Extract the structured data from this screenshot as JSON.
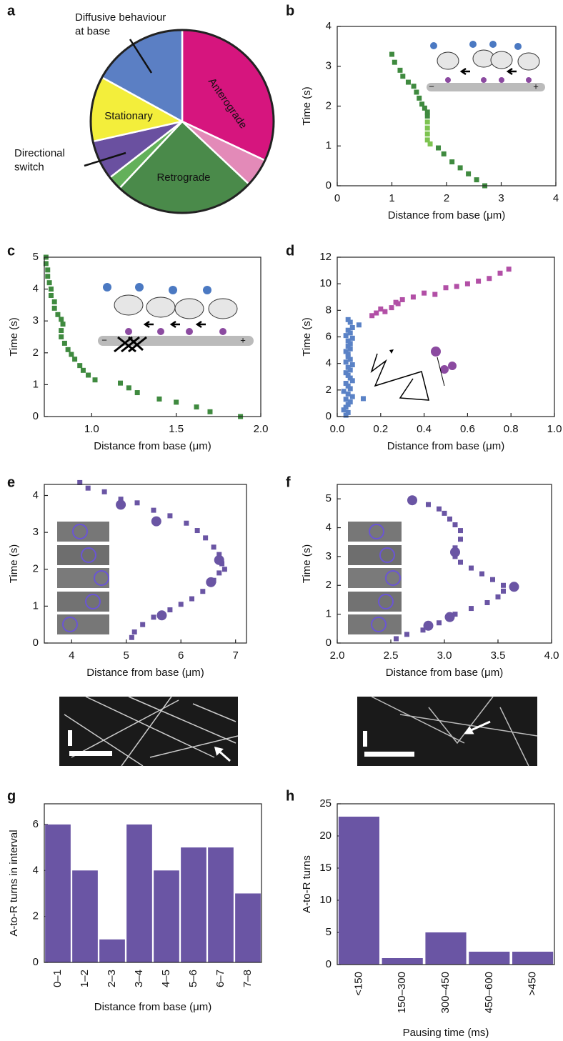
{
  "chart_data": [
    {
      "panel": "a",
      "type": "pie",
      "categories": [
        "Anterograde",
        null,
        "Retrograde",
        null,
        "Directional\nswitch",
        "Stationary",
        "Diffusive  behaviour\nat base"
      ],
      "values": [
        32,
        5,
        25,
        2.5,
        7,
        11.5,
        17
      ],
      "colors": [
        "#d6157e",
        "#e38ab8",
        "#4a8a4a",
        "#63b05a",
        "#6a50a0",
        "#f3ee3b",
        "#5b7fc4"
      ]
    },
    {
      "panel": "b",
      "type": "scatter",
      "x_label": "Distance from base (μm)",
      "y_label": "Time (s)",
      "xlim": [
        0,
        4
      ],
      "xticks": [
        0,
        1,
        2,
        3,
        4
      ],
      "ylim": [
        0,
        4
      ],
      "yticks": [
        0,
        1,
        2,
        3,
        4
      ],
      "inset_labels": [
        "−",
        "+"
      ],
      "series": [
        {
          "color": "#3f8a3f",
          "marker": "square",
          "x": [
            2.7,
            2.55,
            2.4,
            2.25,
            2.1,
            1.95,
            1.85,
            1.65,
            1.65,
            1.6,
            1.55,
            1.5,
            1.45,
            1.4,
            1.3,
            1.2,
            1.15,
            1.05,
            1.0
          ],
          "values": [
            0,
            0.15,
            0.3,
            0.45,
            0.6,
            0.8,
            0.95,
            1.75,
            1.85,
            1.95,
            2.05,
            2.2,
            2.35,
            2.5,
            2.6,
            2.75,
            2.9,
            3.1,
            3.3
          ]
        },
        {
          "color": "#7dc350",
          "marker": "square",
          "x": [
            1.7,
            1.65,
            1.65,
            1.65,
            1.65
          ],
          "values": [
            1.05,
            1.15,
            1.3,
            1.45,
            1.6
          ]
        }
      ]
    },
    {
      "panel": "c",
      "type": "scatter",
      "x_label": "Distance from base (μm)",
      "y_label": "Time (s)",
      "xlim": [
        0.72,
        2.0
      ],
      "xticks": [
        {
          "value": 1,
          "label": "1.0"
        },
        {
          "value": 1.5,
          "label": "1.5"
        },
        {
          "value": 2,
          "label": "2.0"
        }
      ],
      "ylim": [
        0,
        5
      ],
      "yticks": [
        0,
        1,
        2,
        3,
        4,
        5
      ],
      "inset_labels": [
        "−",
        "+"
      ],
      "series": [
        {
          "color": "#3f8a3f",
          "marker": "square",
          "x": [
            1.88,
            1.7,
            1.62,
            1.5,
            1.4,
            1.27,
            1.22,
            1.17,
            1.02,
            0.98,
            0.95,
            0.93,
            0.9,
            0.88,
            0.86,
            0.84,
            0.82,
            0.82,
            0.83,
            0.82,
            0.8,
            0.78,
            0.78,
            0.76,
            0.76,
            0.75,
            0.74,
            0.74,
            0.73,
            0.73
          ],
          "values": [
            0,
            0.15,
            0.3,
            0.45,
            0.55,
            0.75,
            0.9,
            1.05,
            1.15,
            1.3,
            1.45,
            1.6,
            1.8,
            1.95,
            2.1,
            2.3,
            2.5,
            2.7,
            2.9,
            3.05,
            3.2,
            3.4,
            3.6,
            3.8,
            4.0,
            4.2,
            4.4,
            4.6,
            4.8,
            5.0
          ]
        }
      ]
    },
    {
      "panel": "d",
      "type": "scatter",
      "x_label": "Distance from base (μm)",
      "y_label": "Time (s)",
      "xlim": [
        0,
        1
      ],
      "xticks": [
        {
          "value": 0,
          "label": "0.0"
        },
        {
          "value": 0.2,
          "label": "0.2"
        },
        {
          "value": 0.4,
          "label": "0.4"
        },
        {
          "value": 0.6,
          "label": "0.6"
        },
        {
          "value": 0.8,
          "label": "0.8"
        },
        {
          "value": 1,
          "label": "1.0"
        }
      ],
      "ylim": [
        0,
        12
      ],
      "yticks": [
        0,
        2,
        4,
        6,
        8,
        10,
        12
      ],
      "series": [
        {
          "color": "#5a82c6",
          "marker": "square",
          "x": [
            0.04,
            0.05,
            0.03,
            0.04,
            0.05,
            0.06,
            0.04,
            0.07,
            0.05,
            0.03,
            0.06,
            0.05,
            0.04,
            0.07,
            0.06,
            0.05,
            0.04,
            0.06,
            0.05,
            0.07,
            0.04,
            0.06,
            0.05,
            0.05,
            0.04,
            0.06,
            0.05,
            0.06,
            0.05,
            0.07,
            0.04,
            0.06,
            0.05,
            0.07,
            0.1,
            0.06,
            0.05,
            0.12
          ],
          "values": [
            0.1,
            0.3,
            0.5,
            0.7,
            0.9,
            1.1,
            1.3,
            1.5,
            1.7,
            1.9,
            2.1,
            2.3,
            2.5,
            2.7,
            2.9,
            3.1,
            3.3,
            3.5,
            3.7,
            3.9,
            4.1,
            4.3,
            4.5,
            4.7,
            4.9,
            5.1,
            5.3,
            5.5,
            5.7,
            5.9,
            6.1,
            6.3,
            6.5,
            6.7,
            6.9,
            7.1,
            7.3,
            1.35
          ]
        },
        {
          "color": "#b24fa6",
          "marker": "square",
          "x": [
            0.16,
            0.18,
            0.2,
            0.22,
            0.25,
            0.27,
            0.28,
            0.3,
            0.35,
            0.4,
            0.45,
            0.5,
            0.55,
            0.6,
            0.65,
            0.7,
            0.75,
            0.79
          ],
          "values": [
            7.6,
            7.8,
            8.1,
            7.9,
            8.2,
            8.6,
            8.5,
            8.8,
            9.0,
            9.3,
            9.2,
            9.7,
            9.8,
            10.0,
            10.2,
            10.4,
            10.8,
            11.1
          ]
        }
      ]
    },
    {
      "panel": "e",
      "type": "scatter",
      "x_label": "Distance from base (μm)",
      "y_label": "Time (s)",
      "xlim": [
        3.5,
        7.2
      ],
      "xticks": [
        4,
        5,
        6,
        7
      ],
      "ylim": [
        0,
        4.3
      ],
      "yticks": [
        0,
        1,
        2,
        3,
        4
      ],
      "series": [
        {
          "color": "#6a55a4",
          "marker": "square",
          "x": [
            5.1,
            5.15,
            5.3,
            5.5,
            5.8,
            6.0,
            6.2,
            6.4,
            6.6,
            6.7,
            6.8,
            6.75,
            6.7,
            6.6,
            6.45,
            6.3,
            6.1,
            5.8,
            5.5,
            5.2,
            4.9,
            4.6,
            4.3,
            4.15
          ],
          "values": [
            0.15,
            0.3,
            0.5,
            0.7,
            0.9,
            1.05,
            1.2,
            1.4,
            1.7,
            1.9,
            2.0,
            2.15,
            2.4,
            2.6,
            2.85,
            3.05,
            3.25,
            3.45,
            3.6,
            3.8,
            3.9,
            4.1,
            4.2,
            4.35
          ]
        },
        {
          "color": "#6a55a4",
          "marker": "circle",
          "x": [
            5.65,
            6.55,
            6.7,
            5.55,
            4.9
          ],
          "values": [
            0.75,
            1.65,
            2.25,
            3.3,
            3.75
          ]
        }
      ]
    },
    {
      "panel": "f",
      "type": "scatter",
      "x_label": "Distance from base (μm)",
      "y_label": "Time (s)",
      "xlim": [
        2,
        4
      ],
      "xticks": [
        {
          "value": 2,
          "label": "2.0"
        },
        {
          "value": 2.5,
          "label": "2.5"
        },
        {
          "value": 3,
          "label": "3.0"
        },
        {
          "value": 3.5,
          "label": "3.5"
        },
        {
          "value": 4,
          "label": "4.0"
        }
      ],
      "ylim": [
        0,
        5.5
      ],
      "yticks": [
        0,
        1,
        2,
        3,
        4,
        5
      ],
      "series": [
        {
          "color": "#6a55a4",
          "marker": "square",
          "x": [
            2.55,
            2.65,
            2.8,
            2.95,
            3.1,
            3.25,
            3.4,
            3.5,
            3.55,
            3.55,
            3.45,
            3.35,
            3.25,
            3.15,
            3.1,
            3.1,
            3.15,
            3.15,
            3.1,
            3.05,
            3.0,
            2.95,
            2.85
          ],
          "values": [
            0.15,
            0.3,
            0.45,
            0.7,
            1.0,
            1.2,
            1.4,
            1.6,
            1.8,
            2.0,
            2.2,
            2.4,
            2.6,
            2.8,
            3.0,
            3.3,
            3.6,
            3.9,
            4.1,
            4.3,
            4.5,
            4.65,
            4.8
          ]
        },
        {
          "color": "#6a55a4",
          "marker": "circle",
          "x": [
            2.7,
            3.1,
            3.65,
            3.05,
            2.85
          ],
          "values": [
            4.95,
            3.15,
            1.95,
            0.9,
            0.6
          ]
        }
      ]
    },
    {
      "panel": "g",
      "type": "bar",
      "x_label": "Distance from base (μm)",
      "y_label": "A-to-R  turns in interval",
      "categories": [
        "0–1",
        "1–2",
        "2–3",
        "3–4",
        "4–5",
        "5–6",
        "6–7",
        "7–8"
      ],
      "values": [
        6,
        4,
        1,
        6,
        4,
        5,
        5,
        3
      ],
      "color": "#6a55a4",
      "ylim": [
        0,
        6.9
      ],
      "yticks": [
        0,
        2,
        4,
        6
      ]
    },
    {
      "panel": "h",
      "type": "bar",
      "x_label": "Pausing time (ms)",
      "y_label": "A-to-R turns",
      "categories": [
        "<150",
        "150–300",
        "300–450",
        "450–600",
        ">450"
      ],
      "values": [
        23,
        1,
        5,
        2,
        2
      ],
      "color": "#6a55a4",
      "ylim": [
        0,
        25
      ],
      "yticks": [
        0,
        5,
        10,
        15,
        20,
        25
      ]
    }
  ]
}
